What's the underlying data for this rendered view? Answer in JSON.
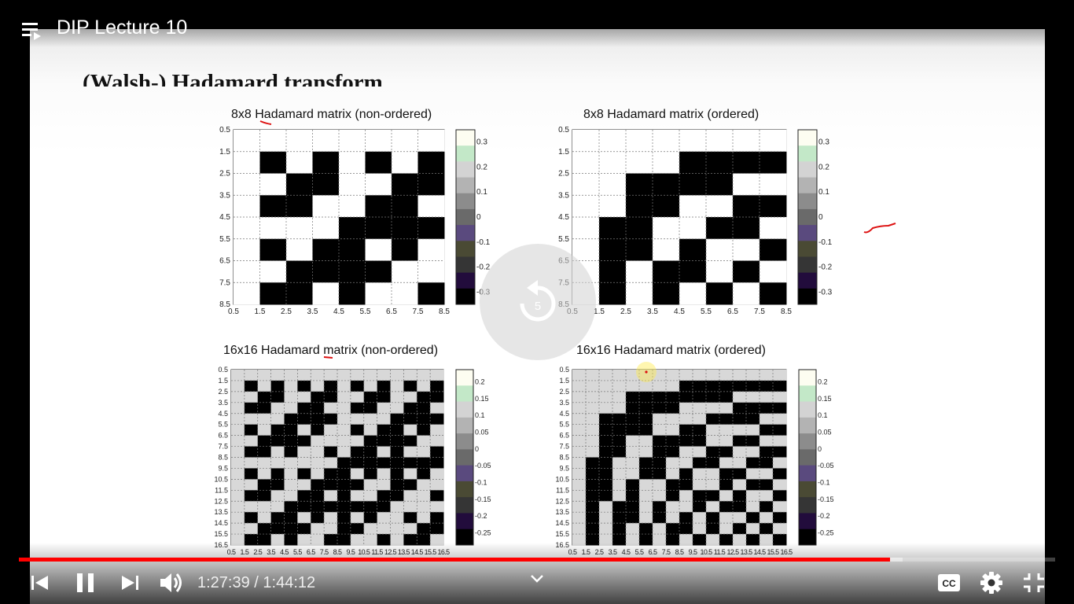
{
  "header": {
    "title": "DIP Lecture 10"
  },
  "slide": {
    "heading_prefix": "(Walsh",
    "heading_rest": "-) Hadamard transform",
    "plots": [
      {
        "title": "8x8 Hadamard matrix (non-ordered)",
        "n": 8,
        "order": "natural",
        "y_ticks": [
          "0.5",
          "1.5",
          "2.5",
          "3.5",
          "4.5",
          "5.5",
          "6.5",
          "7.5",
          "8.5"
        ],
        "x_ticks": [
          "0.5",
          "1.5",
          "2.5",
          "3.5",
          "4.5",
          "5.5",
          "6.5",
          "7.5",
          "8.5"
        ],
        "colorbar_ticks": [
          "0.3",
          "0.2",
          "0.1",
          "0",
          "-0.1",
          "-0.2",
          "-0.3"
        ]
      },
      {
        "title": "8x8 Hadamard matrix (ordered)",
        "n": 8,
        "order": "sequency",
        "y_ticks": [
          "0.5",
          "1.5",
          "2.5",
          "3.5",
          "4.5",
          "5.5",
          "6.5",
          "7.5",
          "8.5"
        ],
        "x_ticks": [
          "0.5",
          "1.5",
          "2.5",
          "3.5",
          "4.5",
          "5.5",
          "6.5",
          "7.5",
          "8.5"
        ],
        "colorbar_ticks": [
          "0.3",
          "0.2",
          "0.1",
          "0",
          "-0.1",
          "-0.2",
          "-0.3"
        ]
      },
      {
        "title": "16x16 Hadamard matrix (non-ordered)",
        "n": 16,
        "order": "natural",
        "y_ticks": [
          "0.5",
          "1.5",
          "2.5",
          "3.5",
          "4.5",
          "5.5",
          "6.5",
          "7.5",
          "8.5",
          "9.5",
          "10.5",
          "11.5",
          "12.5",
          "13.5",
          "14.5",
          "15.5",
          "16.5"
        ],
        "x_ticks": [
          "0.5",
          "1.5",
          "2.5",
          "3.5",
          "4.5",
          "5.5",
          "6.5",
          "7.5",
          "8.5",
          "9.5",
          "10.5",
          "11.5",
          "12.5",
          "13.5",
          "14.5",
          "15.5",
          "16.5"
        ],
        "colorbar_ticks": [
          "0.2",
          "0.15",
          "0.1",
          "0.05",
          "0",
          "-0.05",
          "-0.1",
          "-0.15",
          "-0.2",
          "-0.25"
        ]
      },
      {
        "title": "16x16 Hadamard matrix (ordered)",
        "n": 16,
        "order": "sequency",
        "y_ticks": [
          "0.5",
          "1.5",
          "2.5",
          "3.5",
          "4.5",
          "5.5",
          "6.5",
          "7.5",
          "8.5",
          "9.5",
          "10.5",
          "11.5",
          "12.5",
          "13.5",
          "14.5",
          "15.5",
          "16.5"
        ],
        "x_ticks": [
          "0.5",
          "1.5",
          "2.5",
          "3.5",
          "4.5",
          "5.5",
          "6.5",
          "7.5",
          "8.5",
          "9.5",
          "10.5",
          "11.5",
          "12.5",
          "13.5",
          "14.5",
          "15.5",
          "16.5"
        ],
        "colorbar_ticks": [
          "0.2",
          "0.15",
          "0.1",
          "0.05",
          "0",
          "-0.05",
          "-0.1",
          "-0.15",
          "-0.2",
          "-0.25"
        ]
      }
    ],
    "colorbar_colors": [
      "#fdfdf1",
      "#c3e8c8",
      "#d3d3d3",
      "#b3b3b3",
      "#8c8c8c",
      "#6a6a6a",
      "#5a4a7e",
      "#4a4a34",
      "#353535",
      "#220c3c",
      "#000000"
    ],
    "replay_seconds": "5"
  },
  "controls": {
    "current_time": "1:27:39",
    "separator": " / ",
    "duration": "1:44:12",
    "played_fraction": 0.841,
    "buffered_fraction": 0.853,
    "icons": {
      "playlist": "playlist-icon",
      "previous": "skip-previous-icon",
      "pause": "pause-icon",
      "next": "skip-next-icon",
      "volume": "volume-icon",
      "chevron": "chevron-down-icon",
      "captions": "captions-icon",
      "settings": "settings-gear-icon",
      "exit_fullscreen": "exit-fullscreen-icon"
    }
  }
}
